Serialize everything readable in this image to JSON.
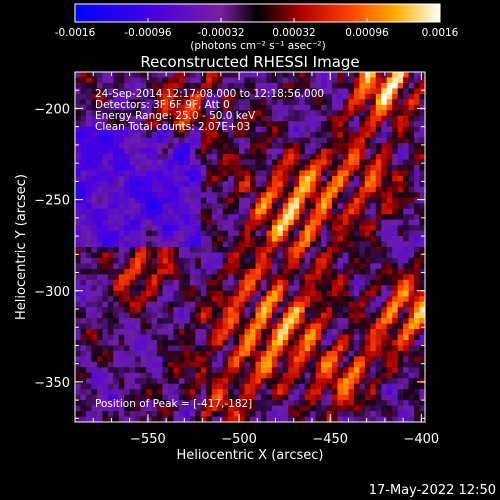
{
  "colorbar": {
    "ticks": [
      "-0.0016",
      "-0.00096",
      "-0.00032",
      "0.00032",
      "0.00096",
      "0.0016"
    ],
    "unit_label": "(photons cm⁻² s⁻¹ asec⁻²)",
    "range": [
      -0.0016,
      0.0016
    ]
  },
  "chart_data": {
    "type": "heatmap",
    "title": "Reconstructed RHESSI Image",
    "xlabel": "Heliocentric X (arcsec)",
    "ylabel": "Heliocentric Y (arcsec)",
    "xlim": [
      -590,
      -398
    ],
    "ylim": [
      -372,
      -180
    ],
    "x_ticks": [
      {
        "value": -550,
        "label": "−550"
      },
      {
        "value": -500,
        "label": "−500"
      },
      {
        "value": -450,
        "label": "−450"
      },
      {
        "value": -400,
        "label": "−400"
      }
    ],
    "y_ticks": [
      {
        "value": -200,
        "label": "−200"
      },
      {
        "value": -250,
        "label": "−250"
      },
      {
        "value": -300,
        "label": "−300"
      },
      {
        "value": -350,
        "label": "−350"
      }
    ],
    "peak_position": [
      -417,
      -182
    ],
    "annotations": [
      "24-Sep-2014 12:17:08.000 to 12:18:56.000",
      "Detectors: 3F 6F 9F, Att 0",
      "Energy Range: 25.0 - 50.0 keV",
      "Clean    Total counts: 2.07E+03",
      "Position of Peak = [-417,-182]"
    ]
  },
  "footer": {
    "timestamp": "17-May-2022 12:50"
  }
}
